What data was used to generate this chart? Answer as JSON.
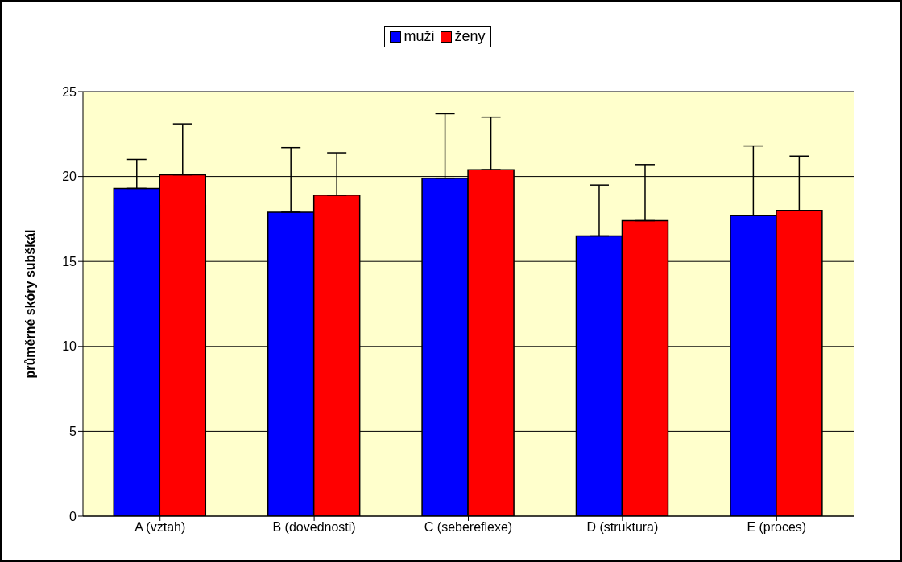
{
  "chart_data": {
    "type": "bar",
    "ylabel": "průměrné skóry subškál",
    "categories": [
      "A (vztah)",
      "B (dovednosti)",
      "C (sebereflexe)",
      "D (struktura)",
      "E (proces)"
    ],
    "series": [
      {
        "name": "muži",
        "color": "#0000ff",
        "values": [
          19.3,
          17.9,
          19.9,
          16.5,
          17.7
        ],
        "errors": [
          [
            19.3,
            21.0
          ],
          [
            17.9,
            21.7
          ],
          [
            19.9,
            23.7
          ],
          [
            16.5,
            19.5
          ],
          [
            17.7,
            21.8
          ]
        ]
      },
      {
        "name": "ženy",
        "color": "#ff0000",
        "values": [
          20.1,
          18.9,
          20.4,
          17.4,
          18.0
        ],
        "errors": [
          [
            20.1,
            23.1
          ],
          [
            18.9,
            21.4
          ],
          [
            20.4,
            23.5
          ],
          [
            17.4,
            20.7
          ],
          [
            18.0,
            21.2
          ]
        ]
      }
    ],
    "ylim": [
      0,
      25
    ],
    "yticks": [
      0,
      5,
      10,
      15,
      20,
      25
    ],
    "grid": "y",
    "legend": "top"
  }
}
